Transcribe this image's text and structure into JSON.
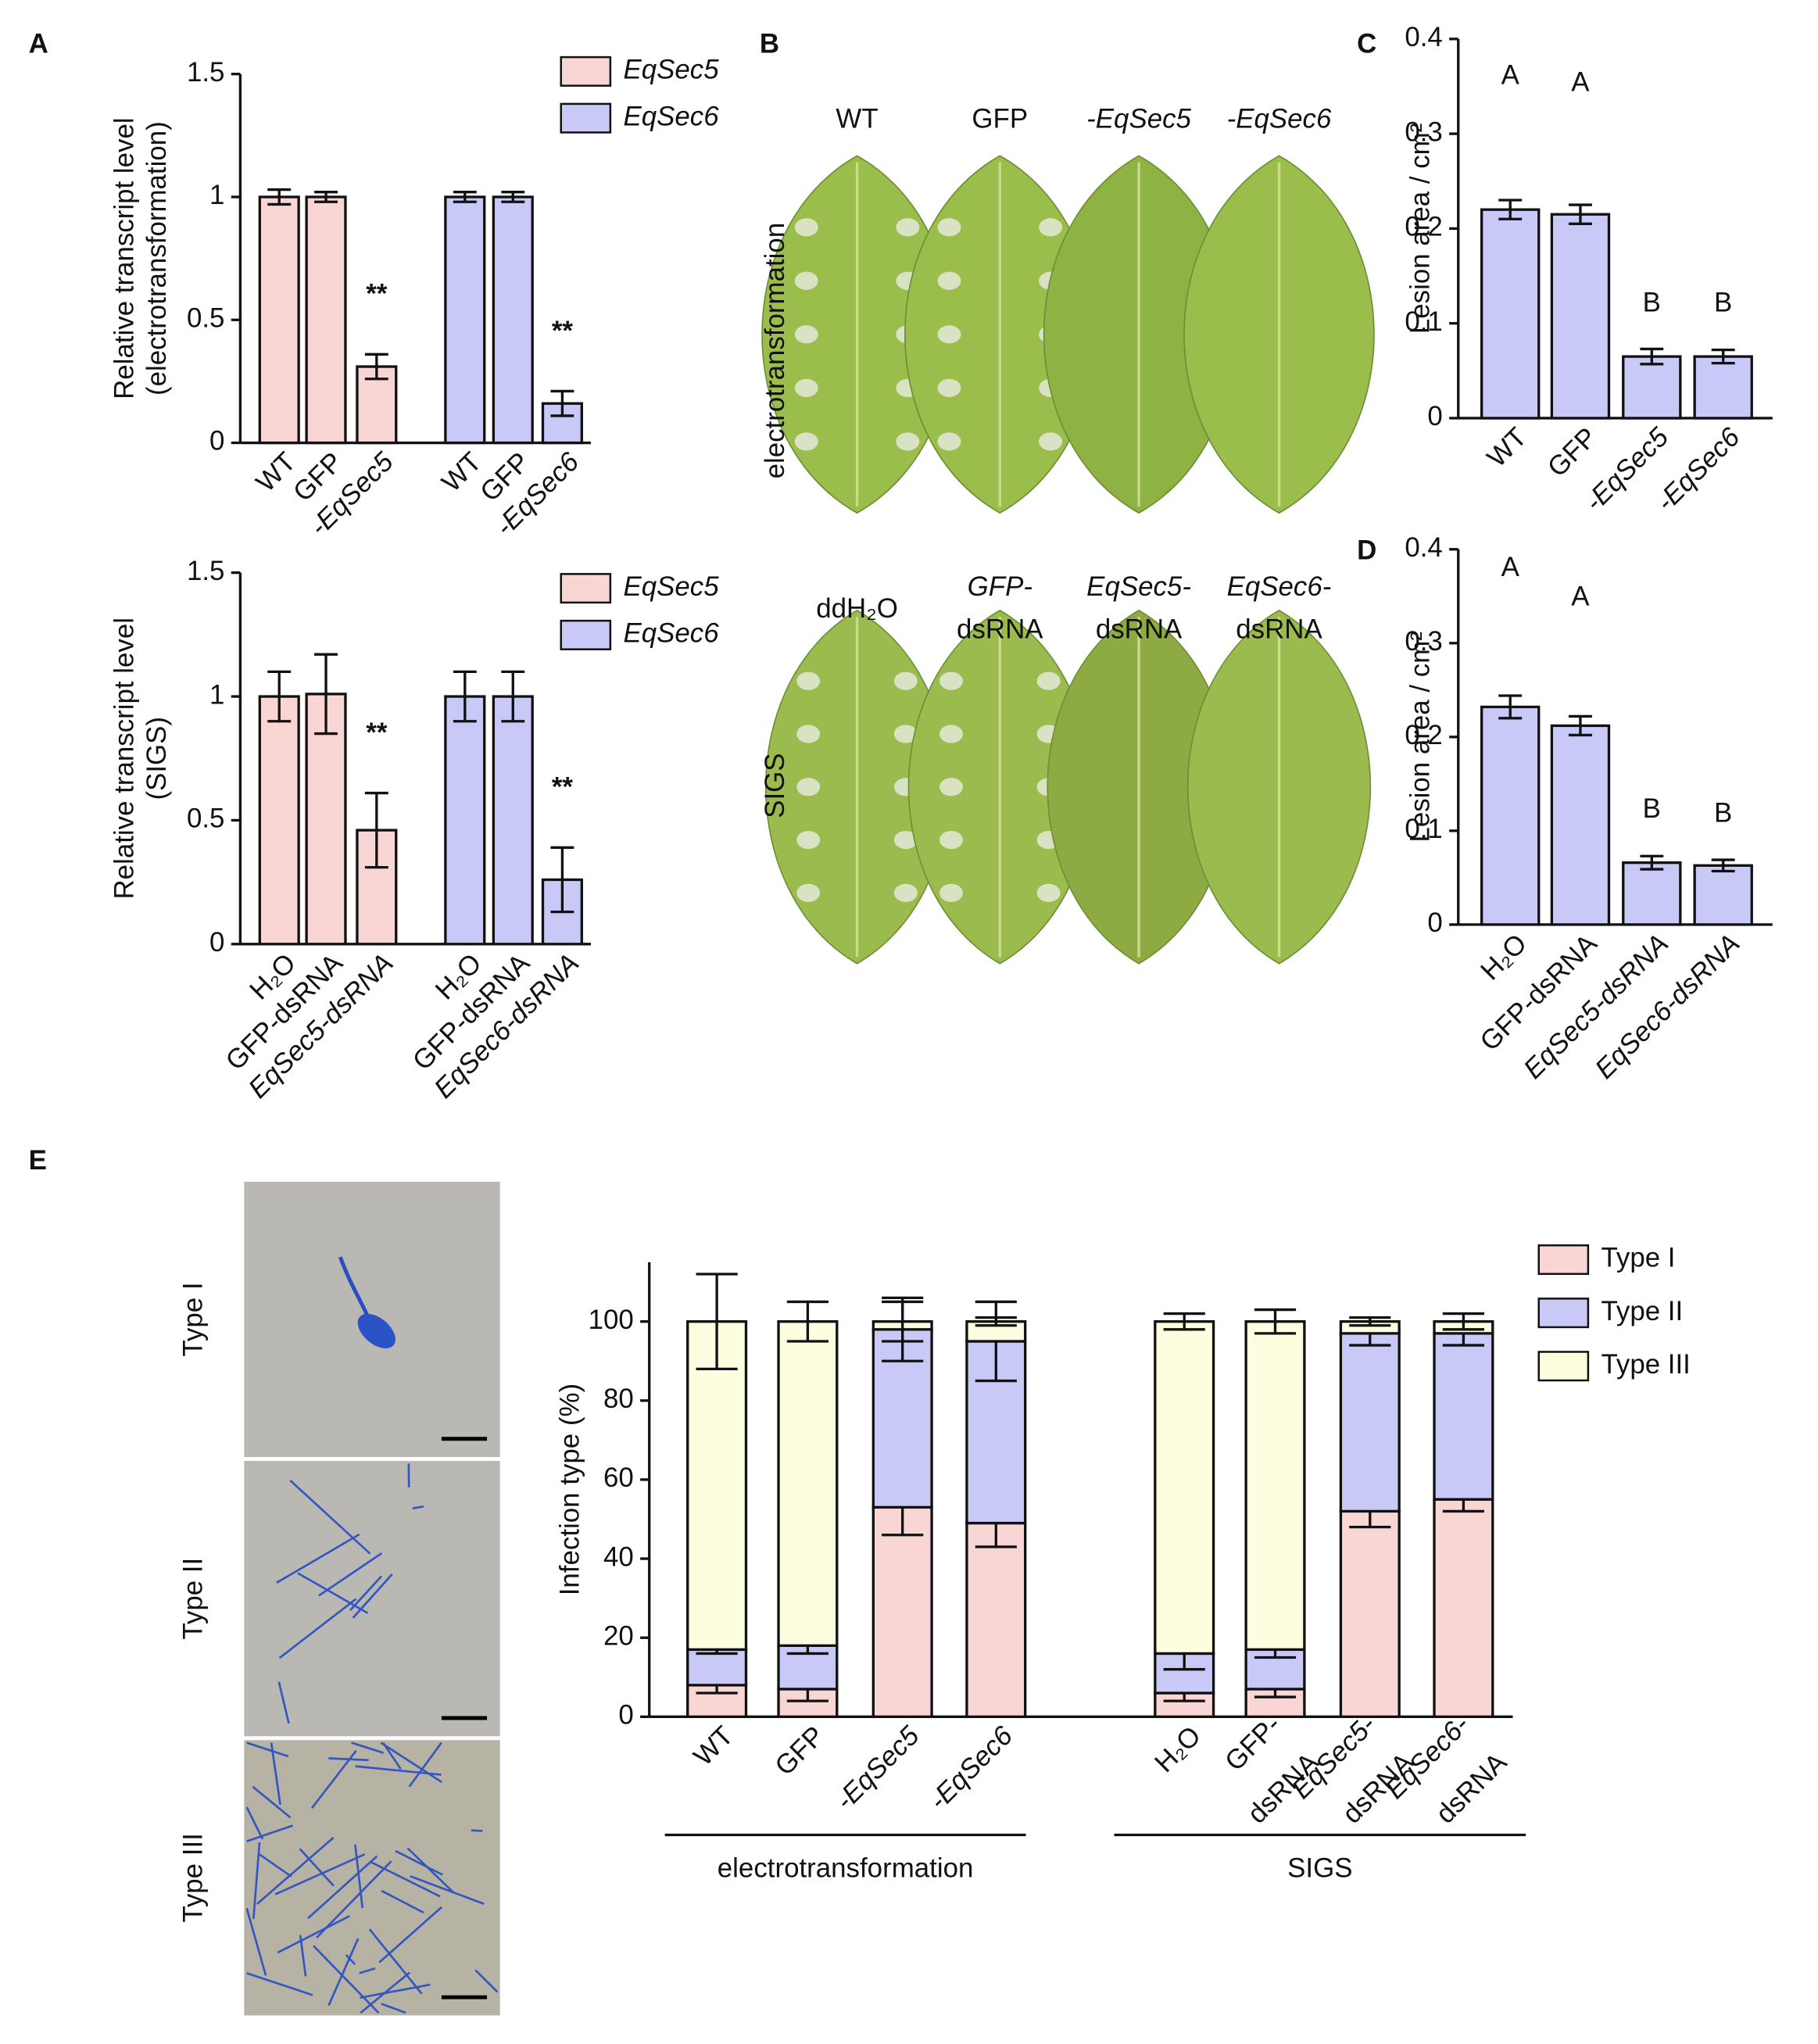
{
  "figure": {
    "panel_letters": [
      "A",
      "B",
      "C",
      "D",
      "E"
    ],
    "leaf_panel": {
      "row_labels": [
        "electrotransformation",
        "SIGS"
      ],
      "top_labels": [
        "WT",
        "GFP",
        "-EqSec5",
        "-EqSec6"
      ],
      "bottom_labels": [
        "ddH₂O",
        [
          "GFP-",
          "dsRNA"
        ],
        [
          "EqSec5-",
          "dsRNA"
        ],
        [
          "EqSec6-",
          "dsRNA"
        ]
      ]
    },
    "micrograph_labels": [
      "Type I",
      "Type II",
      "Type III"
    ]
  },
  "chart_data": [
    {
      "type": "bar",
      "ylabel": [
        "Relative transcript level",
        "(electrotransformation)"
      ],
      "categories": [
        "WT",
        "GFP",
        "-EqSec5",
        "WT",
        "GFP",
        "-EqSec6"
      ],
      "series": [
        {
          "name": "EqSec5",
          "color": "#f9d6d4",
          "values": [
            1,
            1,
            0.31,
            null,
            null,
            null
          ],
          "errors": [
            0.03,
            0.02,
            0.05,
            null,
            null,
            null
          ],
          "significance": [
            null,
            null,
            "**",
            null,
            null,
            null
          ]
        },
        {
          "name": "EqSec6",
          "color": "#c9c9f7",
          "values": [
            null,
            null,
            null,
            1,
            1,
            0.16
          ],
          "errors": [
            null,
            null,
            null,
            0.02,
            0.02,
            0.05
          ],
          "significance": [
            null,
            null,
            null,
            null,
            null,
            "**"
          ]
        }
      ],
      "ylim": [
        0,
        1.5
      ],
      "yticks": [
        0,
        0.5,
        1,
        1.5
      ],
      "legend": "upper right"
    },
    {
      "type": "bar",
      "ylabel": [
        "Relative transcript level",
        "(SIGS)"
      ],
      "categories": [
        "H₂O",
        "GFP-dsRNA",
        "EqSec5-dsRNA",
        "H₂O",
        "GFP-dsRNA",
        "EqSec6-dsRNA"
      ],
      "series": [
        {
          "name": "EqSec5",
          "color": "#f9d6d4",
          "values": [
            1,
            1.01,
            0.46,
            null,
            null,
            null
          ],
          "errors": [
            0.1,
            0.16,
            0.15,
            null,
            null,
            null
          ],
          "significance": [
            null,
            null,
            "**",
            null,
            null,
            null
          ]
        },
        {
          "name": "EqSec6",
          "color": "#c9c9f7",
          "values": [
            null,
            null,
            null,
            1,
            1,
            0.26
          ],
          "errors": [
            null,
            null,
            null,
            0.1,
            0.1,
            0.13
          ],
          "significance": [
            null,
            null,
            null,
            null,
            null,
            "**"
          ]
        }
      ],
      "ylim": [
        0,
        1.5
      ],
      "yticks": [
        0,
        0.5,
        1,
        1.5
      ],
      "legend": "upper right"
    },
    {
      "type": "bar",
      "ylabel": [
        "Lesion area / cm²"
      ],
      "categories": [
        "WT",
        "GFP",
        "-EqSec5",
        "-EqSec6"
      ],
      "series": [
        {
          "color": "#c9c9f7",
          "values": [
            0.22,
            0.215,
            0.065,
            0.065
          ],
          "errors": [
            0.01,
            0.01,
            0.008,
            0.007
          ],
          "significance": [
            "A",
            "A",
            "B",
            "B"
          ]
        }
      ],
      "ylim": [
        0,
        0.4
      ],
      "yticks": [
        0,
        0.1,
        0.2,
        0.3,
        0.4
      ]
    },
    {
      "type": "bar",
      "ylabel": [
        "Lesion area / cm²"
      ],
      "categories": [
        "H₂O",
        "GFP-dsRNA",
        "EqSec5-dsRNA",
        "EqSec6-dsRNA"
      ],
      "series": [
        {
          "color": "#c9c9f7",
          "values": [
            0.232,
            0.212,
            0.066,
            0.063
          ],
          "errors": [
            0.012,
            0.01,
            0.007,
            0.006
          ],
          "significance": [
            "A",
            "A",
            "B",
            "B"
          ]
        }
      ],
      "ylim": [
        0,
        0.4
      ],
      "yticks": [
        0,
        0.1,
        0.2,
        0.3,
        0.4
      ]
    },
    {
      "type": "stacked_bar",
      "ylabel": [
        "Infection type (%)"
      ],
      "categories": [
        "WT",
        "GFP",
        "-EqSec5",
        "-EqSec6",
        "H₂O",
        [
          "GFP-",
          "dsRNA"
        ],
        [
          "EqSec5-",
          "dsRNA"
        ],
        [
          "EqSec6-",
          "dsRNA"
        ]
      ],
      "group_labels": [
        "electrotransformation",
        "SIGS"
      ],
      "series": [
        {
          "name": "Type I",
          "color": "#f9d6d4",
          "values": [
            8,
            7,
            53,
            49,
            6,
            7,
            52,
            55
          ],
          "errors": [
            2,
            3,
            7,
            6,
            2,
            2,
            4,
            3
          ]
        },
        {
          "name": "Type II",
          "color": "#c9c9f7",
          "values": [
            9,
            11,
            45,
            46,
            10,
            10,
            45,
            42
          ],
          "errors": [
            1,
            2,
            8,
            10,
            4,
            2,
            3,
            3
          ]
        },
        {
          "name": "Type III",
          "color": "#fdfde0",
          "values": [
            83,
            82,
            2,
            5,
            84,
            83,
            3,
            3
          ],
          "errors": [
            12,
            5,
            5,
            1,
            2,
            3,
            1,
            2
          ]
        }
      ],
      "ylim": [
        0,
        115
      ],
      "yticks": [
        0,
        20,
        40,
        60,
        80,
        100
      ],
      "legend": "upper right"
    }
  ]
}
